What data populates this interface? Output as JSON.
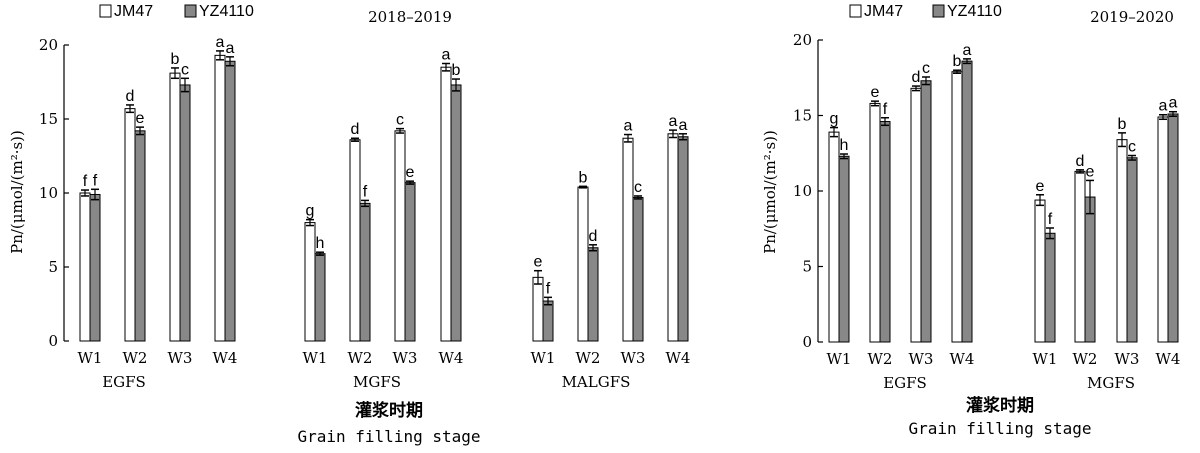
{
  "chart_data": [
    {
      "type": "bar",
      "title": "2018–2019",
      "ylabel": "Pn/(μmol/(m²·s))",
      "xlabel_cn": "灌浆时期",
      "xlabel_en": "Grain filling stage",
      "ylim": [
        0,
        20
      ],
      "yticks": [
        "0",
        "5",
        "10",
        "15",
        "20"
      ],
      "legend": [
        "JM47",
        "YZ4110"
      ],
      "colors": {
        "JM47": "#ffffff",
        "YZ4110": "#888888"
      },
      "groups": [
        {
          "name": "EGFS",
          "categories": [
            "W1",
            "W2",
            "W3",
            "W4"
          ],
          "series": [
            {
              "name": "JM47",
              "values": [
                10.0,
                15.7,
                18.1,
                19.3
              ],
              "errors": [
                0.2,
                0.25,
                0.35,
                0.3
              ],
              "sig": [
                "f",
                "d",
                "b",
                "a"
              ]
            },
            {
              "name": "YZ4110",
              "values": [
                9.9,
                14.2,
                17.3,
                18.9
              ],
              "errors": [
                0.35,
                0.25,
                0.45,
                0.3
              ],
              "sig": [
                "f",
                "e",
                "c",
                "a"
              ]
            }
          ]
        },
        {
          "name": "MGFS",
          "categories": [
            "W1",
            "W2",
            "W3",
            "W4"
          ],
          "series": [
            {
              "name": "JM47",
              "values": [
                8.0,
                13.6,
                14.2,
                18.5
              ],
              "errors": [
                0.2,
                0.1,
                0.15,
                0.25
              ],
              "sig": [
                "g",
                "d",
                "c",
                "a"
              ]
            },
            {
              "name": "YZ4110",
              "values": [
                5.9,
                9.3,
                10.7,
                17.3
              ],
              "errors": [
                0.1,
                0.2,
                0.1,
                0.4
              ],
              "sig": [
                "h",
                "f",
                "e",
                "b"
              ]
            }
          ]
        },
        {
          "name": "MALGFS",
          "categories": [
            "W1",
            "W2",
            "W3",
            "W4"
          ],
          "series": [
            {
              "name": "JM47",
              "values": [
                4.3,
                10.4,
                13.7,
                14.0
              ],
              "errors": [
                0.45,
                0.05,
                0.25,
                0.25
              ],
              "sig": [
                "e",
                "b",
                "a",
                "a"
              ]
            },
            {
              "name": "YZ4110",
              "values": [
                2.7,
                6.3,
                9.7,
                13.8
              ],
              "errors": [
                0.25,
                0.2,
                0.1,
                0.2
              ],
              "sig": [
                "f",
                "d",
                "c",
                "a"
              ]
            }
          ]
        }
      ]
    },
    {
      "type": "bar",
      "title": "2019–2020",
      "ylabel": "Pn/(μmol/(m²·s))",
      "xlabel_cn": "灌浆时期",
      "xlabel_en": "Grain filling stage",
      "ylim": [
        0,
        20
      ],
      "yticks": [
        "0",
        "5",
        "10",
        "15",
        "20"
      ],
      "legend": [
        "JM47",
        "YZ4110"
      ],
      "colors": {
        "JM47": "#ffffff",
        "YZ4110": "#888888"
      },
      "groups": [
        {
          "name": "EGFS",
          "categories": [
            "W1",
            "W2",
            "W3",
            "W4"
          ],
          "series": [
            {
              "name": "JM47",
              "values": [
                13.9,
                15.8,
                16.8,
                17.9
              ],
              "errors": [
                0.3,
                0.15,
                0.15,
                0.1
              ],
              "sig": [
                "g",
                "e",
                "d",
                "b"
              ]
            },
            {
              "name": "YZ4110",
              "values": [
                12.3,
                14.6,
                17.3,
                18.6
              ],
              "errors": [
                0.15,
                0.25,
                0.25,
                0.15
              ],
              "sig": [
                "h",
                "f",
                "c",
                "a"
              ]
            }
          ]
        },
        {
          "name": "MGFS",
          "categories": [
            "W1",
            "W2",
            "W3",
            "W4"
          ],
          "series": [
            {
              "name": "JM47",
              "values": [
                9.4,
                11.3,
                13.4,
                14.9
              ],
              "errors": [
                0.35,
                0.1,
                0.45,
                0.15
              ],
              "sig": [
                "e",
                "d",
                "b",
                "a"
              ]
            },
            {
              "name": "YZ4110",
              "values": [
                7.2,
                9.6,
                12.2,
                15.1
              ],
              "errors": [
                0.35,
                1.1,
                0.15,
                0.15
              ],
              "sig": [
                "f",
                "e",
                "c",
                "a"
              ]
            }
          ]
        }
      ]
    }
  ]
}
